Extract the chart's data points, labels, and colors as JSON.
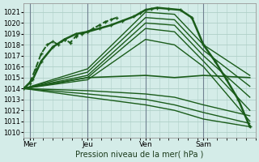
{
  "xlabel": "Pression niveau de la mer( hPa )",
  "bg_color": "#d4ece8",
  "grid_color": "#b0d0c8",
  "line_color": "#1a5c1a",
  "xlim": [
    0,
    4.0
  ],
  "ylim": [
    1009.5,
    1021.8
  ],
  "yticks": [
    1010,
    1011,
    1012,
    1013,
    1014,
    1015,
    1016,
    1017,
    1018,
    1019,
    1020,
    1021
  ],
  "xtick_labels": [
    "Mer",
    "Jeu",
    "Ven",
    "Sam"
  ],
  "xtick_positions": [
    0.1,
    1.1,
    2.1,
    3.1
  ],
  "vlines": [
    0.1,
    1.1,
    2.1,
    3.1
  ],
  "lines": [
    {
      "x": [
        0.0,
        0.15,
        0.3,
        0.5,
        0.7,
        0.9,
        1.1,
        1.3,
        1.5,
        1.7,
        1.9,
        2.0,
        2.1,
        2.2,
        2.3,
        2.5,
        2.7,
        2.9,
        3.1,
        3.3,
        3.5,
        3.7,
        3.9
      ],
      "y": [
        1014.0,
        1014.8,
        1016.5,
        1017.8,
        1018.5,
        1019.0,
        1019.2,
        1019.5,
        1019.8,
        1020.2,
        1020.6,
        1020.9,
        1021.2,
        1021.3,
        1021.4,
        1021.3,
        1021.2,
        1020.5,
        1018.0,
        1016.5,
        1014.8,
        1013.0,
        1010.5
      ],
      "lw": 1.8,
      "marker": "+",
      "ms": 3.5,
      "dashed": false
    },
    {
      "x": [
        0.0,
        1.1,
        2.1,
        2.6,
        3.1,
        3.9
      ],
      "y": [
        1014.0,
        1015.8,
        1021.0,
        1020.8,
        1018.0,
        1015.2
      ],
      "lw": 1.0,
      "marker": ".",
      "ms": 0,
      "dashed": false
    },
    {
      "x": [
        0.0,
        1.1,
        2.1,
        2.6,
        3.1,
        3.9
      ],
      "y": [
        1014.0,
        1015.5,
        1020.5,
        1020.3,
        1017.5,
        1014.2
      ],
      "lw": 1.0,
      "marker": ".",
      "ms": 0,
      "dashed": false
    },
    {
      "x": [
        0.0,
        1.1,
        2.1,
        2.6,
        3.1,
        3.9
      ],
      "y": [
        1014.0,
        1015.2,
        1020.0,
        1019.8,
        1017.0,
        1013.2
      ],
      "lw": 1.0,
      "marker": ".",
      "ms": 0,
      "dashed": false
    },
    {
      "x": [
        0.0,
        1.1,
        2.1,
        2.6,
        3.1,
        3.9
      ],
      "y": [
        1014.0,
        1015.0,
        1019.5,
        1019.2,
        1016.5,
        1012.0
      ],
      "lw": 1.0,
      "marker": ".",
      "ms": 0,
      "dashed": false
    },
    {
      "x": [
        0.0,
        1.1,
        2.1,
        2.6,
        3.1,
        3.9
      ],
      "y": [
        1014.0,
        1014.8,
        1018.5,
        1018.0,
        1016.0,
        1011.0
      ],
      "lw": 1.0,
      "marker": ".",
      "ms": 0,
      "dashed": false
    },
    {
      "x": [
        0.0,
        1.1,
        2.1,
        2.6,
        3.1,
        3.9
      ],
      "y": [
        1014.0,
        1015.0,
        1015.2,
        1015.0,
        1015.2,
        1015.0
      ],
      "lw": 1.2,
      "marker": ".",
      "ms": 0,
      "dashed": false
    },
    {
      "x": [
        0.0,
        1.1,
        2.1,
        2.6,
        3.1,
        3.9
      ],
      "y": [
        1014.0,
        1013.8,
        1013.5,
        1013.2,
        1012.5,
        1011.5
      ],
      "lw": 1.0,
      "marker": ".",
      "ms": 0,
      "dashed": false
    },
    {
      "x": [
        0.0,
        1.1,
        2.1,
        2.6,
        3.1,
        3.9
      ],
      "y": [
        1014.0,
        1013.5,
        1013.0,
        1012.5,
        1011.8,
        1010.8
      ],
      "lw": 1.0,
      "marker": ".",
      "ms": 0,
      "dashed": false
    },
    {
      "x": [
        0.0,
        1.1,
        2.1,
        2.6,
        3.1,
        3.9
      ],
      "y": [
        1014.0,
        1013.2,
        1012.5,
        1012.0,
        1011.2,
        1010.5
      ],
      "lw": 1.0,
      "marker": ".",
      "ms": 0,
      "dashed": false
    },
    {
      "x": [
        0.0,
        0.1,
        0.2,
        0.3,
        0.4,
        0.5,
        0.6,
        0.7,
        0.8,
        0.9,
        1.0,
        1.1,
        1.2,
        1.3,
        1.4,
        1.5,
        1.6
      ],
      "y": [
        1014.0,
        1014.5,
        1015.8,
        1017.2,
        1018.0,
        1018.3,
        1018.0,
        1018.5,
        1018.2,
        1018.8,
        1019.0,
        1019.2,
        1019.5,
        1019.8,
        1020.1,
        1020.3,
        1020.5
      ],
      "lw": 1.4,
      "marker": "+",
      "ms": 2.8,
      "dashed": true
    }
  ]
}
